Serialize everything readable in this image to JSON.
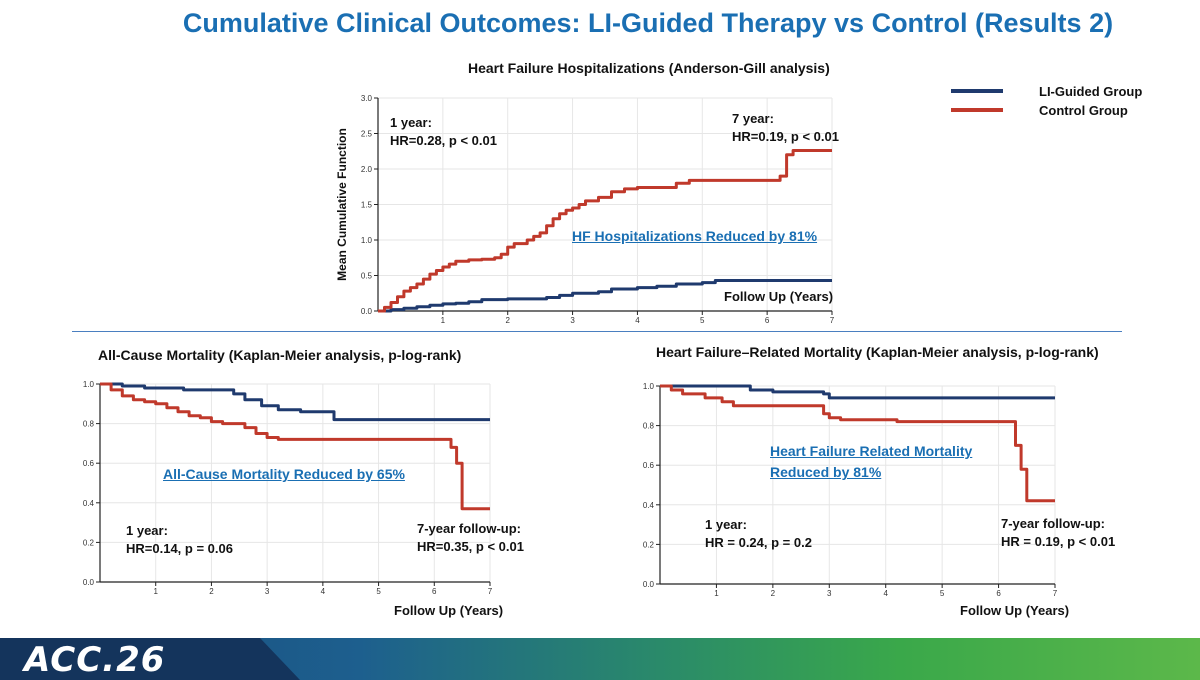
{
  "title": "Cumulative Clinical Outcomes: LI-Guided Therapy vs Control (Results 2)",
  "colors": {
    "li_guided": "#1f3a6e",
    "control": "#c0392b",
    "accent": "#1a6fb3"
  },
  "legend": {
    "li_guided": "LI-Guided Group",
    "control": "Control Group"
  },
  "footer": {
    "logo": "ACC.26"
  },
  "chart_data": [
    {
      "type": "line",
      "step": true,
      "title": "Heart Failure Hospitalizations (Anderson-Gill analysis)",
      "ylabel": "Mean Cumulative Function",
      "xlabel": "Follow Up (Years)",
      "xlim": [
        0,
        7
      ],
      "ylim": [
        0,
        3.0
      ],
      "xticks": [
        1,
        2,
        3,
        4,
        5,
        6,
        7
      ],
      "yticks": [
        0.0,
        0.5,
        1.0,
        1.5,
        2.0,
        2.5,
        3.0
      ],
      "yticklabels": [
        "0.0",
        "0.5",
        "1.0",
        "1.5",
        "2.0",
        "2.5",
        "3.0"
      ],
      "annotations": [
        {
          "line1": "1 year:",
          "line2": "HR=0.28, p < 0.01"
        },
        {
          "line1": "7 year:",
          "line2": "HR=0.19, p < 0.01"
        }
      ],
      "callout": "HF Hospitalizations Reduced by 81%",
      "series": [
        {
          "name": "LI-Guided Group",
          "points": [
            [
              0,
              0
            ],
            [
              0.2,
              0.02
            ],
            [
              0.4,
              0.04
            ],
            [
              0.6,
              0.06
            ],
            [
              0.8,
              0.08
            ],
            [
              1.0,
              0.1
            ],
            [
              1.2,
              0.11
            ],
            [
              1.4,
              0.13
            ],
            [
              1.6,
              0.16
            ],
            [
              2.0,
              0.17
            ],
            [
              2.6,
              0.19
            ],
            [
              2.8,
              0.22
            ],
            [
              3.0,
              0.25
            ],
            [
              3.4,
              0.27
            ],
            [
              3.6,
              0.31
            ],
            [
              4.0,
              0.33
            ],
            [
              4.3,
              0.35
            ],
            [
              4.6,
              0.38
            ],
            [
              5.0,
              0.4
            ],
            [
              5.2,
              0.43
            ],
            [
              7.0,
              0.43
            ]
          ]
        },
        {
          "name": "Control Group",
          "points": [
            [
              0,
              0
            ],
            [
              0.1,
              0.05
            ],
            [
              0.2,
              0.12
            ],
            [
              0.3,
              0.2
            ],
            [
              0.4,
              0.28
            ],
            [
              0.5,
              0.33
            ],
            [
              0.6,
              0.38
            ],
            [
              0.7,
              0.45
            ],
            [
              0.8,
              0.52
            ],
            [
              0.9,
              0.57
            ],
            [
              1.0,
              0.62
            ],
            [
              1.1,
              0.66
            ],
            [
              1.2,
              0.7
            ],
            [
              1.4,
              0.72
            ],
            [
              1.6,
              0.73
            ],
            [
              1.8,
              0.75
            ],
            [
              1.9,
              0.8
            ],
            [
              2.0,
              0.9
            ],
            [
              2.1,
              0.95
            ],
            [
              2.3,
              1.0
            ],
            [
              2.4,
              1.05
            ],
            [
              2.5,
              1.1
            ],
            [
              2.6,
              1.2
            ],
            [
              2.7,
              1.3
            ],
            [
              2.8,
              1.37
            ],
            [
              2.9,
              1.42
            ],
            [
              3.0,
              1.45
            ],
            [
              3.1,
              1.5
            ],
            [
              3.2,
              1.55
            ],
            [
              3.4,
              1.6
            ],
            [
              3.6,
              1.68
            ],
            [
              3.8,
              1.72
            ],
            [
              4.0,
              1.74
            ],
            [
              4.6,
              1.8
            ],
            [
              4.8,
              1.84
            ],
            [
              6.2,
              1.9
            ],
            [
              6.3,
              2.2
            ],
            [
              6.4,
              2.26
            ],
            [
              7.0,
              2.26
            ]
          ]
        }
      ]
    },
    {
      "type": "line",
      "step": true,
      "title": "All-Cause Mortality (Kaplan-Meier analysis, p-log-rank)",
      "xlabel": "Follow Up (Years)",
      "xlim": [
        0,
        7
      ],
      "ylim": [
        0,
        1.0
      ],
      "xticks": [
        1,
        2,
        3,
        4,
        5,
        6,
        7
      ],
      "yticks": [
        0.0,
        0.2,
        0.4,
        0.6,
        0.8,
        1.0
      ],
      "yticklabels": [
        "0.0",
        "0.2",
        "0.4",
        "0.6",
        "0.8",
        "1.0"
      ],
      "annotations": [
        {
          "line1": "1 year:",
          "line2": "HR=0.14, p = 0.06"
        },
        {
          "line1": "7-year follow-up:",
          "line2": "HR=0.35, p < 0.01"
        }
      ],
      "callout": "All-Cause Mortality Reduced by 65%",
      "series": [
        {
          "name": "LI-Guided Group",
          "points": [
            [
              0,
              1.0
            ],
            [
              0.4,
              0.99
            ],
            [
              0.8,
              0.98
            ],
            [
              1.5,
              0.97
            ],
            [
              2.4,
              0.95
            ],
            [
              2.6,
              0.92
            ],
            [
              2.9,
              0.89
            ],
            [
              3.2,
              0.87
            ],
            [
              3.6,
              0.86
            ],
            [
              4.2,
              0.82
            ],
            [
              7.0,
              0.82
            ]
          ]
        },
        {
          "name": "Control Group",
          "points": [
            [
              0,
              1.0
            ],
            [
              0.2,
              0.97
            ],
            [
              0.4,
              0.94
            ],
            [
              0.6,
              0.92
            ],
            [
              0.8,
              0.91
            ],
            [
              1.0,
              0.9
            ],
            [
              1.2,
              0.88
            ],
            [
              1.4,
              0.86
            ],
            [
              1.6,
              0.84
            ],
            [
              1.8,
              0.83
            ],
            [
              2.0,
              0.81
            ],
            [
              2.2,
              0.8
            ],
            [
              2.6,
              0.78
            ],
            [
              2.8,
              0.75
            ],
            [
              3.0,
              0.73
            ],
            [
              3.2,
              0.72
            ],
            [
              6.3,
              0.68
            ],
            [
              6.4,
              0.6
            ],
            [
              6.5,
              0.37
            ],
            [
              7.0,
              0.37
            ]
          ]
        }
      ]
    },
    {
      "type": "line",
      "step": true,
      "title": "Heart Failure–Related Mortality (Kaplan-Meier analysis, p-log-rank)",
      "xlabel": "Follow Up (Years)",
      "xlim": [
        0,
        7
      ],
      "ylim": [
        0,
        1.0
      ],
      "xticks": [
        1,
        2,
        3,
        4,
        5,
        6,
        7
      ],
      "yticks": [
        0.0,
        0.2,
        0.4,
        0.6,
        0.8,
        1.0
      ],
      "yticklabels": [
        "0.0",
        "0.2",
        "0.4",
        "0.6",
        "0.8",
        "1.0"
      ],
      "annotations": [
        {
          "line1": "1 year:",
          "line2": "HR = 0.24, p = 0.2"
        },
        {
          "line1": "7-year follow-up:",
          "line2": "HR = 0.19, p < 0.01"
        }
      ],
      "callout": "Heart Failure Related Mortality Reduced by 81%",
      "series": [
        {
          "name": "LI-Guided Group",
          "points": [
            [
              0,
              1.0
            ],
            [
              1.6,
              0.98
            ],
            [
              2.0,
              0.97
            ],
            [
              2.9,
              0.96
            ],
            [
              3.0,
              0.94
            ],
            [
              7.0,
              0.94
            ]
          ]
        },
        {
          "name": "Control Group",
          "points": [
            [
              0,
              1.0
            ],
            [
              0.2,
              0.98
            ],
            [
              0.4,
              0.96
            ],
            [
              0.8,
              0.94
            ],
            [
              1.1,
              0.92
            ],
            [
              1.3,
              0.9
            ],
            [
              2.9,
              0.86
            ],
            [
              3.0,
              0.84
            ],
            [
              3.2,
              0.83
            ],
            [
              4.2,
              0.82
            ],
            [
              6.2,
              0.82
            ],
            [
              6.3,
              0.7
            ],
            [
              6.4,
              0.58
            ],
            [
              6.5,
              0.42
            ],
            [
              7.0,
              0.42
            ]
          ]
        }
      ]
    }
  ]
}
